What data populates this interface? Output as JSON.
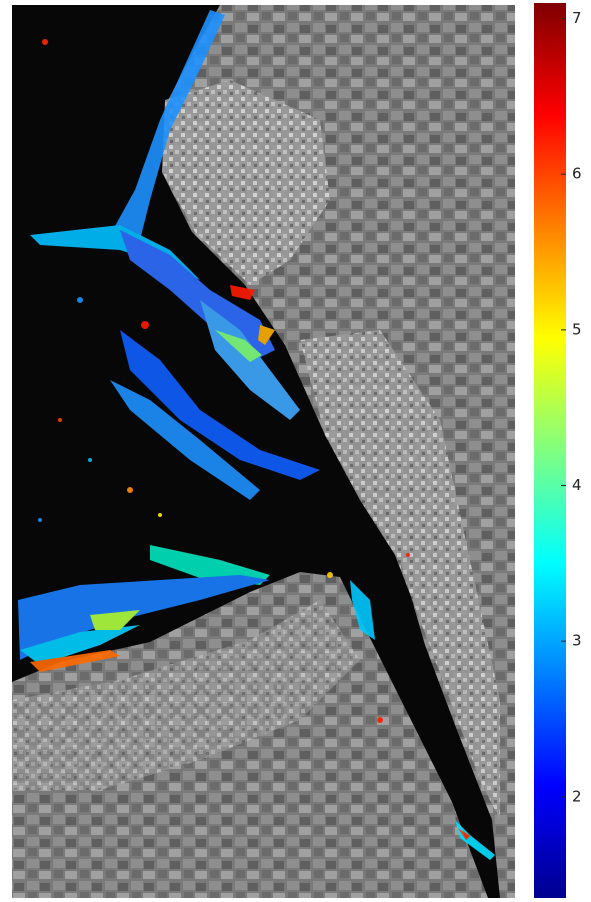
{
  "map": {
    "colorbar": {
      "lim": [
        1.35,
        7.1
      ],
      "ticks": [
        2,
        3,
        4,
        5,
        6,
        7
      ],
      "colormap": "jet"
    }
  }
}
